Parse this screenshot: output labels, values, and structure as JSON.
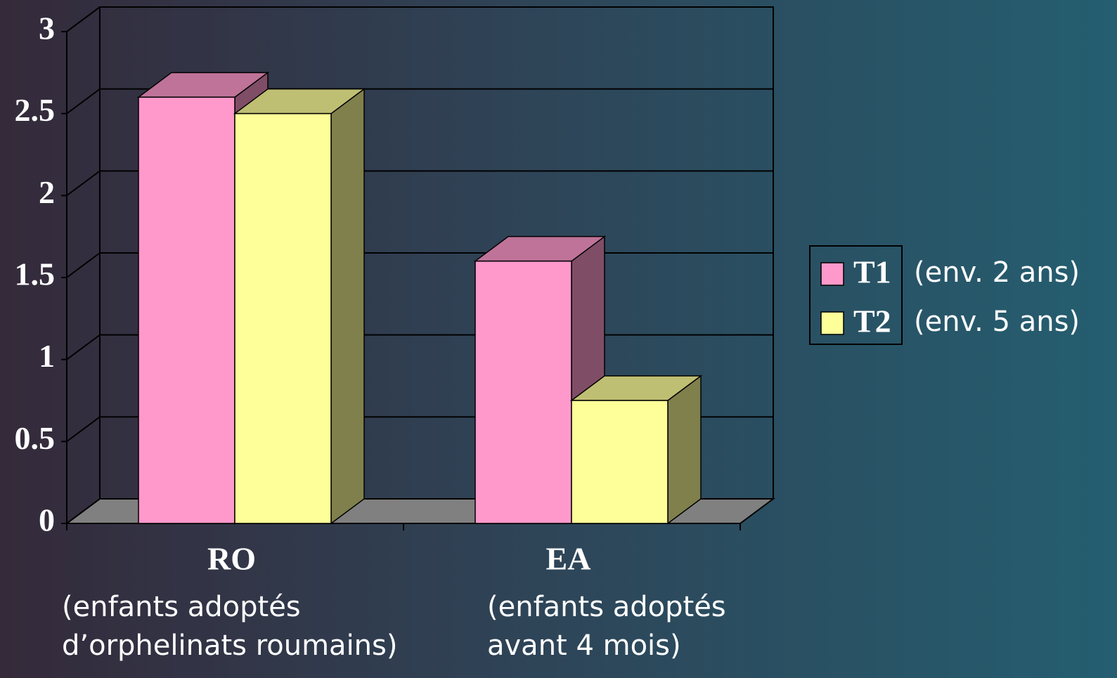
{
  "chart_data": {
    "type": "bar3d",
    "categories": [
      "RO",
      "EA"
    ],
    "category_notes": [
      [
        "(enfants adoptés",
        "d’orphelinats roumains)"
      ],
      [
        "(enfants adoptés",
        "avant 4 mois)"
      ]
    ],
    "series": [
      {
        "name": "T1",
        "note": "(env. 2 ans)",
        "color": "#ff99cc",
        "values": [
          2.6,
          1.6
        ]
      },
      {
        "name": "T2",
        "note": "(env. 5 ans)",
        "color": "#ffff99",
        "values": [
          2.5,
          0.75
        ]
      }
    ],
    "ylim": [
      0,
      3
    ],
    "yticks": [
      0,
      0.5,
      1,
      1.5,
      2,
      2.5,
      3
    ],
    "grid": true,
    "legend": "right"
  }
}
